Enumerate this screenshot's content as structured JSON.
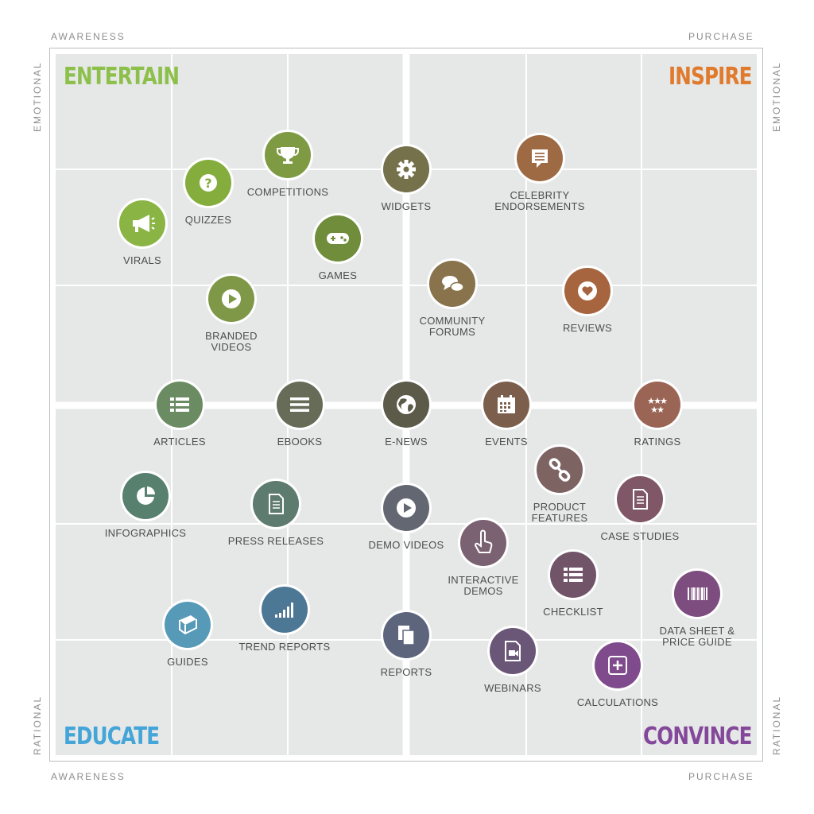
{
  "axes": {
    "top_left": "AWARENESS",
    "top_right": "PURCHASE",
    "bottom_left": "AWARENESS",
    "bottom_right": "PURCHASE",
    "left_top": "EMOTIONAL",
    "left_bottom": "RATIONAL",
    "right_top": "EMOTIONAL",
    "right_bottom": "RATIONAL"
  },
  "quadrants": {
    "entertain": {
      "label": "ENTERTAIN",
      "color": "#8cc04b"
    },
    "inspire": {
      "label": "INSPIRE",
      "color": "#e07a2c"
    },
    "educate": {
      "label": "EDUCATE",
      "color": "#43a5d8"
    },
    "convince": {
      "label": "CONVINCE",
      "color": "#84489a"
    }
  },
  "items": [
    {
      "label": "COMPETITIONS",
      "icon": "trophy-icon",
      "color": "#7e9a42"
    },
    {
      "label": "QUIZZES",
      "icon": "question-icon",
      "color": "#84ad3e"
    },
    {
      "label": "VIRALS",
      "icon": "megaphone-icon",
      "color": "#8ab545"
    },
    {
      "label": "GAMES",
      "icon": "gamepad-icon",
      "color": "#708d3c"
    },
    {
      "label": "BRANDED\nVIDEOS",
      "icon": "play-icon",
      "color": "#7e9848"
    },
    {
      "label": "WIDGETS",
      "icon": "gear-icon",
      "color": "#74714b"
    },
    {
      "label": "CELEBRITY\nENDORSEMENTS",
      "icon": "chat-icon",
      "color": "#9d6a44"
    },
    {
      "label": "COMMUNITY\nFORUMS",
      "icon": "chat-bubbles-icon",
      "color": "#88734c"
    },
    {
      "label": "REVIEWS",
      "icon": "heart-icon",
      "color": "#a6653e"
    },
    {
      "label": "ARTICLES",
      "icon": "list-icon",
      "color": "#6b8b63"
    },
    {
      "label": "EBOOKS",
      "icon": "menu-icon",
      "color": "#676c58"
    },
    {
      "label": "E-NEWS",
      "icon": "globe-icon",
      "color": "#5c5a49"
    },
    {
      "label": "EVENTS",
      "icon": "calendar-icon",
      "color": "#7b5f4c"
    },
    {
      "label": "RATINGS",
      "icon": "stars-icon",
      "color": "#9b6556"
    },
    {
      "label": "INFOGRAPHICS",
      "icon": "pie-chart-icon",
      "color": "#57806f"
    },
    {
      "label": "PRESS RELEASES",
      "icon": "document-icon",
      "color": "#5e7b6f"
    },
    {
      "label": "DEMO VIDEOS",
      "icon": "play-icon",
      "color": "#636772"
    },
    {
      "label": "PRODUCT\nFEATURES",
      "icon": "link-icon",
      "color": "#7d6463"
    },
    {
      "label": "CASE STUDIES",
      "icon": "document-icon",
      "color": "#7f5766"
    },
    {
      "label": "INTERACTIVE\nDEMOS",
      "icon": "hand-pointer-icon",
      "color": "#7b6272"
    },
    {
      "label": "CHECKLIST",
      "icon": "list-icon",
      "color": "#715468"
    },
    {
      "label": "DATA SHEET &\nPRICE GUIDE",
      "icon": "barcode-icon",
      "color": "#7d4d7f"
    },
    {
      "label": "GUIDES",
      "icon": "book-icon",
      "color": "#579ab8"
    },
    {
      "label": "TREND REPORTS",
      "icon": "bar-signal-icon",
      "color": "#4c7795"
    },
    {
      "label": "REPORTS",
      "icon": "documents-icon",
      "color": "#5d657d"
    },
    {
      "label": "WEBINARS",
      "icon": "video-file-icon",
      "color": "#6a5677"
    },
    {
      "label": "CALCULATIONS",
      "icon": "plus-box-icon",
      "color": "#7f4b8c"
    }
  ]
}
